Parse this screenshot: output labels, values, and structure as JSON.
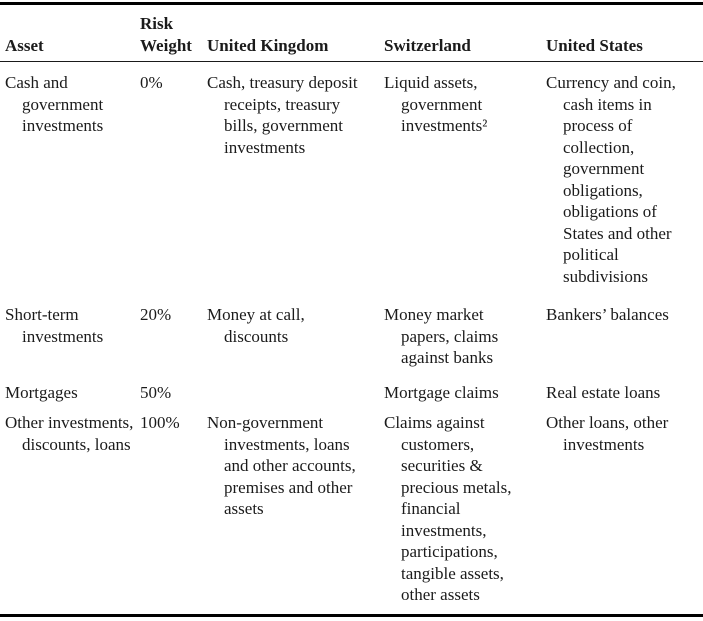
{
  "table": {
    "columns": [
      {
        "key": "asset",
        "label": "Asset"
      },
      {
        "key": "risk_weight",
        "label": "Risk Weight"
      },
      {
        "key": "uk",
        "label": "United Kingdom"
      },
      {
        "key": "switzerland",
        "label": "Switzerland"
      },
      {
        "key": "us",
        "label": "United States"
      }
    ],
    "rows": [
      {
        "asset": "Cash and government investments",
        "risk_weight": "0%",
        "uk": "Cash, treasury deposit receipts, treasury bills, government investments",
        "switzerland": "Liquid assets, government investments²",
        "us": "Currency and coin, cash items in process of collection, government obligations, obligations of States and other political subdivisions"
      },
      {
        "asset": "Short-term investments",
        "risk_weight": "20%",
        "uk": "Money at call, discounts",
        "switzerland": "Money market papers, claims against banks",
        "us": "Bankers’ balances"
      },
      {
        "asset": "Mortgages",
        "risk_weight": "50%",
        "uk": "",
        "switzerland": "Mortgage claims",
        "us": "Real estate loans"
      },
      {
        "asset": "Other investments, discounts, loans",
        "risk_weight": "100%",
        "uk": "Non-government investments, loans and other accounts, premises and other assets",
        "switzerland": "Claims against customers, securities & precious metals, financial investments, participations, tangible assets, other assets",
        "us": "Other loans, other investments"
      }
    ]
  },
  "colors": {
    "text": "#1b1b1b",
    "rule": "#000000",
    "background": "#ffffff"
  }
}
